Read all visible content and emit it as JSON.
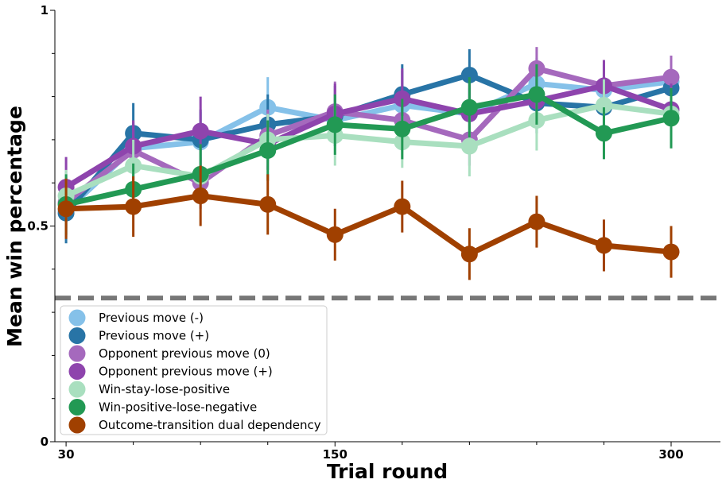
{
  "chart_data": {
    "type": "line",
    "xlabel": "Trial round",
    "ylabel": "Mean win percentage",
    "xlim": [
      25,
      322
    ],
    "ylim": [
      0,
      1
    ],
    "x_ticks": [
      30,
      150,
      300
    ],
    "x_ticks_minor": [
      60,
      90,
      120,
      180,
      210,
      240,
      270
    ],
    "y_ticks": [
      {
        "value": 0,
        "label": "0"
      },
      {
        "value": 0.5,
        "label": "0.5"
      },
      {
        "value": 1,
        "label": "1"
      }
    ],
    "y_ticks_minor": [
      0.1,
      0.2,
      0.3,
      0.4,
      0.6,
      0.7,
      0.8,
      0.9
    ],
    "chance_level": 0.333,
    "chance_color": "#777777",
    "x": [
      30,
      60,
      90,
      120,
      150,
      180,
      210,
      240,
      270,
      300
    ],
    "legend_position": "lower-left",
    "series": [
      {
        "name": "Previous move (-)",
        "color": "#85c1e9",
        "values": [
          0.535,
          0.68,
          0.695,
          0.775,
          0.745,
          0.78,
          0.76,
          0.83,
          0.815,
          0.835
        ],
        "errors": [
          0.06,
          0.06,
          0.07,
          0.07,
          0.06,
          0.08,
          0.06,
          0.06,
          0.06,
          0.06
        ]
      },
      {
        "name": "Previous move (+)",
        "color": "#2874a6",
        "values": [
          0.53,
          0.715,
          0.7,
          0.735,
          0.755,
          0.805,
          0.85,
          0.785,
          0.775,
          0.82
        ],
        "errors": [
          0.07,
          0.07,
          0.07,
          0.07,
          0.07,
          0.07,
          0.06,
          0.07,
          0.06,
          0.06
        ]
      },
      {
        "name": "Opponent previous move (0)",
        "color": "#a569bd",
        "values": [
          0.555,
          0.675,
          0.6,
          0.71,
          0.765,
          0.745,
          0.7,
          0.865,
          0.825,
          0.845
        ],
        "errors": [
          0.06,
          0.06,
          0.06,
          0.06,
          0.07,
          0.07,
          0.06,
          0.05,
          0.06,
          0.05
        ]
      },
      {
        "name": "Opponent previous move (+)",
        "color": "#8e44ad",
        "values": [
          0.59,
          0.685,
          0.72,
          0.69,
          0.76,
          0.795,
          0.76,
          0.79,
          0.825,
          0.77
        ],
        "errors": [
          0.07,
          0.06,
          0.08,
          0.06,
          0.07,
          0.07,
          0.07,
          0.06,
          0.06,
          0.06
        ]
      },
      {
        "name": "Win-stay-lose-positive",
        "color": "#a9dfbf",
        "values": [
          0.57,
          0.64,
          0.615,
          0.7,
          0.71,
          0.695,
          0.685,
          0.745,
          0.78,
          0.76
        ],
        "errors": [
          0.06,
          0.06,
          0.06,
          0.06,
          0.07,
          0.06,
          0.07,
          0.07,
          0.06,
          0.06
        ]
      },
      {
        "name": "Win-positive-lose-negative",
        "color": "#229954",
        "values": [
          0.55,
          0.585,
          0.62,
          0.675,
          0.735,
          0.725,
          0.775,
          0.805,
          0.715,
          0.75
        ],
        "errors": [
          0.07,
          0.06,
          0.07,
          0.07,
          0.07,
          0.07,
          0.07,
          0.07,
          0.06,
          0.07
        ]
      },
      {
        "name": "Outcome-transition dual dependency",
        "color": "#a04000",
        "values": [
          0.54,
          0.545,
          0.57,
          0.55,
          0.48,
          0.545,
          0.435,
          0.51,
          0.455,
          0.44
        ],
        "errors": [
          0.07,
          0.07,
          0.07,
          0.07,
          0.06,
          0.06,
          0.06,
          0.06,
          0.06,
          0.06
        ]
      }
    ]
  }
}
